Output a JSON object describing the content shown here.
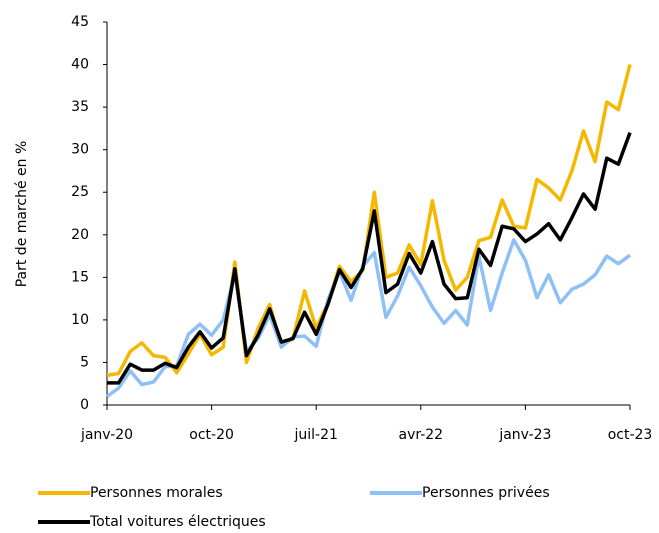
{
  "chart_data": {
    "type": "line",
    "y_label": "Part de marché en %",
    "categories": [
      "janv-20",
      null,
      null,
      null,
      null,
      null,
      null,
      null,
      null,
      "oct-20",
      null,
      null,
      null,
      null,
      null,
      null,
      null,
      null,
      "juil-21",
      null,
      null,
      null,
      null,
      null,
      null,
      null,
      null,
      "avr-22",
      null,
      null,
      null,
      null,
      null,
      null,
      null,
      null,
      "janv-23",
      null,
      null,
      null,
      null,
      null,
      null,
      null,
      null,
      "oct-23"
    ],
    "series": [
      {
        "name": "Personnes morales",
        "color": "#f5b800",
        "values": [
          3.5,
          3.7,
          6.3,
          7.3,
          5.8,
          5.6,
          3.8,
          6,
          8.3,
          5.9,
          6.8,
          16.8,
          5,
          9,
          11.8,
          7,
          7.8,
          13.4,
          9,
          12,
          16.3,
          14.5,
          15.8,
          25,
          15,
          15.5,
          18.8,
          16.5,
          24,
          17,
          13.5,
          15,
          19.3,
          19.7,
          24.1,
          21,
          20.8,
          26.5,
          25.5,
          24.1,
          27.5,
          32.2,
          28.6,
          35.6,
          34.7,
          40
        ]
      },
      {
        "name": "Personnes privées",
        "color": "#8fc0f5",
        "values": [
          1,
          2,
          4,
          2.4,
          2.7,
          4.5,
          4.6,
          8.3,
          9.5,
          8.2,
          10,
          15.5,
          6.3,
          7.8,
          10.6,
          6.8,
          8,
          8.1,
          6.9,
          12.3,
          15.7,
          12.3,
          16.3,
          17.9,
          10.3,
          12.8,
          16.2,
          14,
          11.5,
          9.6,
          11.1,
          9.4,
          17.5,
          11.1,
          15.5,
          19.4,
          17,
          12.6,
          15.3,
          12,
          13.6,
          14.2,
          15.3,
          17.5,
          16.6,
          17.6
        ]
      },
      {
        "name": "Total voitures électriques",
        "color": "#000000",
        "values": [
          2.6,
          2.6,
          4.8,
          4.1,
          4.1,
          4.9,
          4.4,
          6.8,
          8.6,
          6.7,
          7.9,
          16,
          5.8,
          8.2,
          11.3,
          7.4,
          7.8,
          10.9,
          8.3,
          11.8,
          15.9,
          13.8,
          16,
          22.8,
          13.2,
          14.2,
          17.8,
          15.5,
          19.2,
          14.2,
          12.5,
          12.6,
          18.3,
          16.4,
          21,
          20.7,
          19.2,
          20.1,
          21.3,
          19.4,
          22,
          24.8,
          23,
          29,
          28.3,
          32
        ]
      }
    ],
    "ylim": [
      0,
      45
    ],
    "yticks": [
      0,
      5,
      10,
      15,
      20,
      25,
      30,
      35,
      40,
      45
    ],
    "grid": false
  }
}
